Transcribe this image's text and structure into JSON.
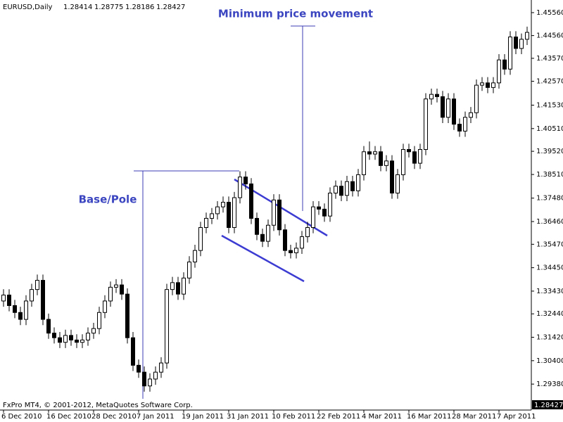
{
  "header": {
    "symbol": "EURUSD,Daily",
    "quote": [
      1.28414,
      1.28775,
      1.28186,
      1.28427
    ]
  },
  "footer": "FxPro MT4, © 2001-2012, MetaQuotes Software Corp.",
  "last_price": {
    "value": 1.28427,
    "label": "1.28427"
  },
  "annotations": [
    "Minimum price movement",
    "Base/Pole"
  ],
  "chart_data": {
    "type": "candlestick",
    "categories": [
      "6 Dec 2010",
      null,
      null,
      null,
      null,
      null,
      null,
      null,
      "16 Dec 2010",
      null,
      null,
      null,
      null,
      null,
      null,
      null,
      "28 Dec 2010",
      null,
      null,
      null,
      null,
      null,
      null,
      null,
      "7 Jan 2011",
      null,
      null,
      null,
      null,
      null,
      null,
      null,
      "19 Jan 2011",
      null,
      null,
      null,
      null,
      null,
      null,
      null,
      "31 Jan 2011",
      null,
      null,
      null,
      null,
      null,
      null,
      null,
      "10 Feb 2011",
      null,
      null,
      null,
      null,
      null,
      null,
      null,
      "22 Feb 2011",
      null,
      null,
      null,
      null,
      null,
      null,
      null,
      "4 Mar 2011",
      null,
      null,
      null,
      null,
      null,
      null,
      null,
      "16 Mar 2011",
      null,
      null,
      null,
      null,
      null,
      null,
      null,
      "28 Mar 2011",
      null,
      null,
      null,
      null,
      null,
      null,
      null,
      "7 Apr 2011",
      null,
      null,
      null,
      null,
      null
    ],
    "open": [
      1.33,
      1.3326,
      1.328,
      1.325,
      1.322,
      1.33,
      1.335,
      1.339,
      1.322,
      1.316,
      1.314,
      1.312,
      1.315,
      1.313,
      1.312,
      1.313,
      1.316,
      1.318,
      1.325,
      1.33,
      1.336,
      1.337,
      1.333,
      1.314,
      1.302,
      1.299,
      1.293,
      1.296,
      1.299,
      1.303,
      1.335,
      1.338,
      1.333,
      1.34,
      1.347,
      1.352,
      1.362,
      1.366,
      1.368,
      1.371,
      1.373,
      1.362,
      1.375,
      1.384,
      1.381,
      1.366,
      1.359,
      1.356,
      1.363,
      1.374,
      1.361,
      1.352,
      1.351,
      1.353,
      1.358,
      1.362,
      1.371,
      1.37,
      1.367,
      1.377,
      1.38,
      1.376,
      1.382,
      1.378,
      1.385,
      1.395,
      1.394,
      1.395,
      1.389,
      1.391,
      1.377,
      1.385,
      1.396,
      1.395,
      1.39,
      1.396,
      1.418,
      1.42,
      1.419,
      1.41,
      1.418,
      1.407,
      1.404,
      1.41,
      1.412,
      1.424,
      1.425,
      1.423,
      1.425,
      1.435,
      1.431,
      1.445,
      1.44,
      1.444
    ],
    "high": [
      1.3351,
      1.3351,
      1.3305,
      1.3275,
      1.3325,
      1.3375,
      1.3415,
      1.3415,
      1.3245,
      1.3185,
      1.3165,
      1.3175,
      1.3175,
      1.3155,
      1.3155,
      1.3185,
      1.3205,
      1.3275,
      1.3325,
      1.3385,
      1.3395,
      1.3395,
      1.3355,
      1.3165,
      1.3045,
      1.3015,
      1.2985,
      1.3015,
      1.3055,
      1.3375,
      1.3405,
      1.3405,
      1.3425,
      1.3495,
      1.3545,
      1.3645,
      1.3685,
      1.3705,
      1.3735,
      1.3755,
      1.3755,
      1.3775,
      1.3865,
      1.3865,
      1.3835,
      1.3685,
      1.3615,
      1.3655,
      1.3765,
      1.3765,
      1.3635,
      1.3545,
      1.3555,
      1.3605,
      1.3645,
      1.3735,
      1.3735,
      1.3725,
      1.3795,
      1.3825,
      1.3825,
      1.3845,
      1.3845,
      1.3875,
      1.3975,
      1.3995,
      1.3975,
      1.3975,
      1.3935,
      1.3935,
      1.3875,
      1.3985,
      1.3985,
      1.3975,
      1.3985,
      1.4205,
      1.4225,
      1.4225,
      1.4215,
      1.4205,
      1.4205,
      1.4095,
      1.4125,
      1.4145,
      1.4265,
      1.4275,
      1.4275,
      1.4275,
      1.4375,
      1.4375,
      1.4475,
      1.4475,
      1.4465,
      1.4495
    ],
    "low": [
      1.3275,
      1.3255,
      1.3225,
      1.3195,
      1.3195,
      1.3275,
      1.3325,
      1.3195,
      1.3135,
      1.3115,
      1.3095,
      1.3095,
      1.3105,
      1.3095,
      1.3095,
      1.3105,
      1.3135,
      1.3155,
      1.3225,
      1.3275,
      1.3335,
      1.3305,
      1.3115,
      1.2995,
      1.2965,
      1.2905,
      1.2905,
      1.2935,
      1.2965,
      1.3005,
      1.3325,
      1.3305,
      1.3305,
      1.3375,
      1.3445,
      1.3495,
      1.3595,
      1.3635,
      1.3655,
      1.3685,
      1.3595,
      1.3595,
      1.3725,
      1.3785,
      1.3635,
      1.3565,
      1.3535,
      1.3535,
      1.3605,
      1.3585,
      1.3495,
      1.3485,
      1.3485,
      1.3505,
      1.3555,
      1.3595,
      1.3675,
      1.3645,
      1.3645,
      1.3745,
      1.3735,
      1.3735,
      1.3755,
      1.3755,
      1.3825,
      1.3915,
      1.3915,
      1.3865,
      1.3865,
      1.3745,
      1.3745,
      1.3825,
      1.3925,
      1.3875,
      1.3875,
      1.3935,
      1.4155,
      1.4165,
      1.4075,
      1.4075,
      1.4045,
      1.4015,
      1.4015,
      1.4075,
      1.4095,
      1.4215,
      1.4205,
      1.4205,
      1.4225,
      1.4285,
      1.4285,
      1.4375,
      1.4375,
      1.4415
    ],
    "close": [
      1.3326,
      1.328,
      1.325,
      1.322,
      1.33,
      1.335,
      1.339,
      1.322,
      1.316,
      1.314,
      1.312,
      1.315,
      1.313,
      1.312,
      1.313,
      1.316,
      1.318,
      1.325,
      1.33,
      1.336,
      1.337,
      1.333,
      1.314,
      1.302,
      1.299,
      1.293,
      1.296,
      1.299,
      1.303,
      1.335,
      1.338,
      1.333,
      1.34,
      1.347,
      1.352,
      1.362,
      1.366,
      1.368,
      1.371,
      1.373,
      1.362,
      1.375,
      1.384,
      1.381,
      1.366,
      1.359,
      1.356,
      1.363,
      1.374,
      1.361,
      1.352,
      1.351,
      1.353,
      1.358,
      1.362,
      1.371,
      1.37,
      1.367,
      1.377,
      1.38,
      1.376,
      1.382,
      1.378,
      1.385,
      1.395,
      1.394,
      1.395,
      1.389,
      1.391,
      1.377,
      1.385,
      1.396,
      1.395,
      1.39,
      1.396,
      1.418,
      1.42,
      1.419,
      1.41,
      1.418,
      1.407,
      1.404,
      1.41,
      1.412,
      1.424,
      1.425,
      1.423,
      1.425,
      1.435,
      1.431,
      1.445,
      1.44,
      1.444,
      1.447
    ],
    "up_color": "#ffffff",
    "down_color": "#000000",
    "ylim": [
      1.2825,
      1.4611
    ],
    "yticks": [
      {
        "value": 1.4556,
        "label": "1.45560"
      },
      {
        "value": 1.4456,
        "label": "1.44560"
      },
      {
        "value": 1.4357,
        "label": "1.43570"
      },
      {
        "value": 1.4257,
        "label": "1.42570"
      },
      {
        "value": 1.4153,
        "label": "1.41530"
      },
      {
        "value": 1.4051,
        "label": "1.40510"
      },
      {
        "value": 1.3952,
        "label": "1.39520"
      },
      {
        "value": 1.3851,
        "label": "1.38510"
      },
      {
        "value": 1.3748,
        "label": "1.37480"
      },
      {
        "value": 1.3646,
        "label": "1.36460"
      },
      {
        "value": 1.3547,
        "label": "1.35470"
      },
      {
        "value": 1.3445,
        "label": "1.34450"
      },
      {
        "value": 1.3343,
        "label": "1.33430"
      },
      {
        "value": 1.3244,
        "label": "1.32440"
      },
      {
        "value": 1.3142,
        "label": "1.31420"
      },
      {
        "value": 1.304,
        "label": "1.30400"
      },
      {
        "value": 1.2938,
        "label": "1.29380"
      }
    ]
  }
}
